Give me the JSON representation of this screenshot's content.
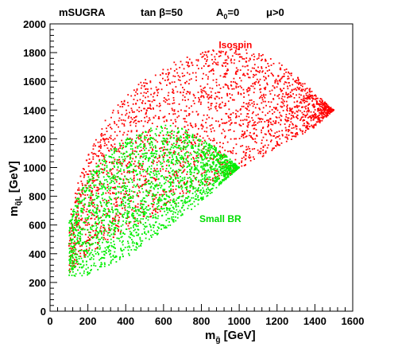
{
  "chart_data": {
    "type": "scatter",
    "title_parts": [
      {
        "main": "mSUGRA"
      },
      {
        "main": "tan β=50"
      },
      {
        "main": "A",
        "sub": "0",
        "tail": "=0"
      },
      {
        "main": "μ>0"
      }
    ],
    "xlabel": {
      "main": "m",
      "sub": "g̃",
      "tail": " [GeV]"
    },
    "ylabel": {
      "main": "m",
      "sub": "q̃L",
      "tail": " [GeV]"
    },
    "xlim": [
      0,
      1600
    ],
    "ylim": [
      0,
      2000
    ],
    "xticks": [
      0,
      200,
      400,
      600,
      800,
      1000,
      1200,
      1400,
      1600
    ],
    "yticks": [
      0,
      200,
      400,
      600,
      800,
      1000,
      1200,
      1400,
      1600,
      1800,
      2000
    ],
    "grid": false,
    "series": [
      {
        "name": "Isospin",
        "color": "#ff0000",
        "label_pos": {
          "x": 980,
          "y": 1830
        },
        "region_top": [
          [
            100,
            680
          ],
          [
            150,
            900
          ],
          [
            200,
            1100
          ],
          [
            300,
            1350
          ],
          [
            400,
            1500
          ],
          [
            500,
            1620
          ],
          [
            600,
            1700
          ],
          [
            700,
            1760
          ],
          [
            800,
            1800
          ],
          [
            900,
            1830
          ],
          [
            1000,
            1830
          ],
          [
            1100,
            1800
          ],
          [
            1200,
            1740
          ],
          [
            1300,
            1640
          ],
          [
            1400,
            1520
          ],
          [
            1500,
            1400
          ]
        ],
        "region_bottom": [
          [
            100,
            260
          ],
          [
            200,
            400
          ],
          [
            400,
            560
          ],
          [
            600,
            700
          ],
          [
            800,
            850
          ],
          [
            1000,
            990
          ],
          [
            1200,
            1130
          ],
          [
            1400,
            1280
          ],
          [
            1500,
            1400
          ]
        ]
      },
      {
        "name": "Small BR",
        "color": "#00ee00",
        "label_pos": {
          "x": 900,
          "y": 620
        },
        "region_top": [
          [
            100,
            620
          ],
          [
            150,
            820
          ],
          [
            200,
            960
          ],
          [
            300,
            1100
          ],
          [
            400,
            1200
          ],
          [
            500,
            1260
          ],
          [
            600,
            1300
          ],
          [
            700,
            1280
          ],
          [
            800,
            1200
          ],
          [
            900,
            1120
          ],
          [
            1000,
            1000
          ]
        ],
        "region_bottom": [
          [
            100,
            240
          ],
          [
            200,
            250
          ],
          [
            400,
            370
          ],
          [
            600,
            560
          ],
          [
            800,
            760
          ],
          [
            1000,
            1000
          ]
        ]
      }
    ]
  }
}
